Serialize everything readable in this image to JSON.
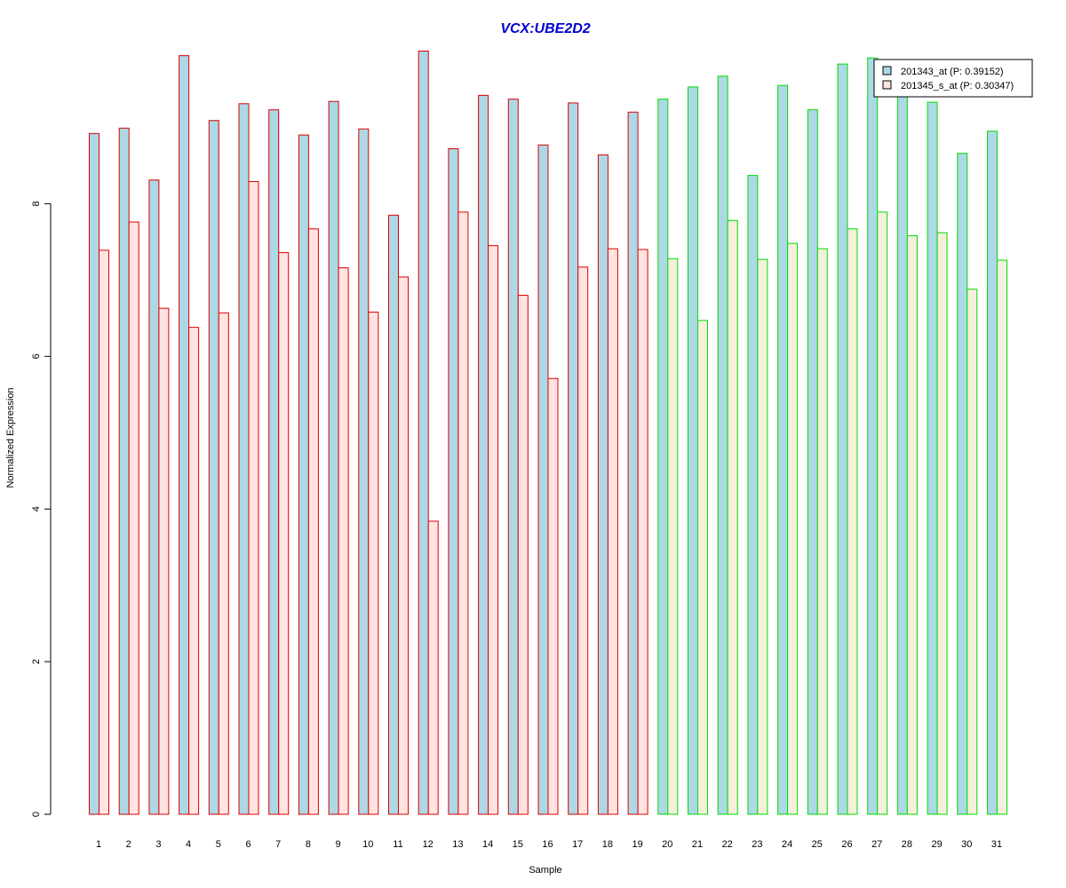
{
  "chart_data": {
    "type": "bar",
    "title": "VCX:UBE2D2",
    "xlabel": "Sample",
    "ylabel": "Normalized Expression",
    "ylim": [
      0,
      10
    ],
    "yticks": [
      0,
      2,
      4,
      6,
      8
    ],
    "grid": false,
    "legend_position": "top-right",
    "categories": [
      "1",
      "2",
      "3",
      "4",
      "5",
      "6",
      "7",
      "8",
      "9",
      "10",
      "11",
      "12",
      "13",
      "14",
      "15",
      "16",
      "17",
      "18",
      "19",
      "20",
      "21",
      "22",
      "23",
      "24",
      "25",
      "26",
      "27",
      "28",
      "29",
      "30",
      "31"
    ],
    "series": [
      {
        "name": "201343_at (P: 0.39152)",
        "values": [
          8.92,
          8.99,
          8.31,
          9.94,
          9.09,
          9.31,
          9.23,
          8.9,
          9.34,
          8.98,
          7.85,
          10.0,
          8.72,
          9.42,
          9.37,
          8.77,
          9.32,
          8.64,
          9.2,
          9.37,
          9.53,
          9.67,
          8.37,
          9.55,
          9.23,
          9.83,
          9.91,
          9.45,
          9.33,
          8.66,
          8.95
        ]
      },
      {
        "name": "201345_s_at (P: 0.30347)",
        "values": [
          7.39,
          7.76,
          6.63,
          6.38,
          6.57,
          8.29,
          7.36,
          7.67,
          7.16,
          6.58,
          7.04,
          3.84,
          7.89,
          7.45,
          6.8,
          5.71,
          7.17,
          7.41,
          7.4,
          7.28,
          6.47,
          7.78,
          7.27,
          7.48,
          7.41,
          7.67,
          7.89,
          7.58,
          7.62,
          6.88,
          7.26
        ]
      }
    ],
    "group_sizes": [
      19,
      12
    ],
    "colors": {
      "title": "#0000cc",
      "series1_fill": "#add8e6",
      "series2_fill": "#ffe4e1",
      "group1_border": "#dd0000",
      "group2_border": "#00dd00",
      "group2_series2_fill": "#f5efdc"
    }
  }
}
